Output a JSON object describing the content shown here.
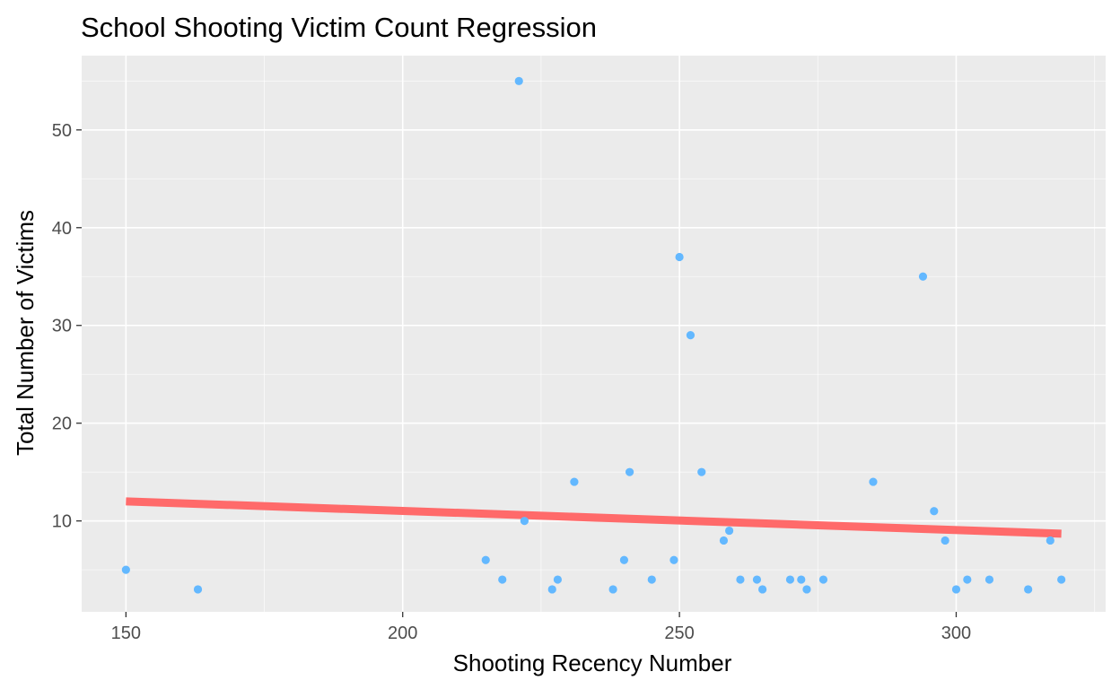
{
  "chart_data": {
    "type": "scatter",
    "title": "School Shooting Victim Count Regression",
    "xlabel": "Shooting Recency Number",
    "ylabel": "Total Number of Victims",
    "xlim": [
      142,
      327
    ],
    "ylim": [
      0.7,
      57.6
    ],
    "x_ticks": [
      150,
      200,
      250,
      300
    ],
    "y_ticks": [
      10,
      20,
      30,
      40,
      50
    ],
    "grid": true,
    "points": [
      {
        "x": 150,
        "y": 5
      },
      {
        "x": 163,
        "y": 3
      },
      {
        "x": 215,
        "y": 6
      },
      {
        "x": 218,
        "y": 4
      },
      {
        "x": 221,
        "y": 55
      },
      {
        "x": 222,
        "y": 10
      },
      {
        "x": 227,
        "y": 3
      },
      {
        "x": 228,
        "y": 4
      },
      {
        "x": 231,
        "y": 14
      },
      {
        "x": 238,
        "y": 3
      },
      {
        "x": 240,
        "y": 6
      },
      {
        "x": 241,
        "y": 15
      },
      {
        "x": 245,
        "y": 4
      },
      {
        "x": 249,
        "y": 6
      },
      {
        "x": 250,
        "y": 37
      },
      {
        "x": 252,
        "y": 29
      },
      {
        "x": 254,
        "y": 15
      },
      {
        "x": 258,
        "y": 8
      },
      {
        "x": 259,
        "y": 9
      },
      {
        "x": 261,
        "y": 4
      },
      {
        "x": 264,
        "y": 4
      },
      {
        "x": 265,
        "y": 3
      },
      {
        "x": 270,
        "y": 4
      },
      {
        "x": 272,
        "y": 4
      },
      {
        "x": 273,
        "y": 3
      },
      {
        "x": 276,
        "y": 4
      },
      {
        "x": 285,
        "y": 14
      },
      {
        "x": 294,
        "y": 35
      },
      {
        "x": 296,
        "y": 11
      },
      {
        "x": 298,
        "y": 8
      },
      {
        "x": 300,
        "y": 3
      },
      {
        "x": 302,
        "y": 4
      },
      {
        "x": 306,
        "y": 4
      },
      {
        "x": 313,
        "y": 3
      },
      {
        "x": 317,
        "y": 8
      },
      {
        "x": 319,
        "y": 4
      }
    ],
    "regression_line": {
      "x": [
        150,
        319
      ],
      "y": [
        12.0,
        8.7
      ]
    },
    "colors": {
      "panel": "#ebebeb",
      "grid_major": "#ffffff",
      "grid_minor": "#f5f5f5",
      "points": "#63b8ff",
      "regression": "#ff6a6a",
      "tick": "#333333"
    }
  }
}
